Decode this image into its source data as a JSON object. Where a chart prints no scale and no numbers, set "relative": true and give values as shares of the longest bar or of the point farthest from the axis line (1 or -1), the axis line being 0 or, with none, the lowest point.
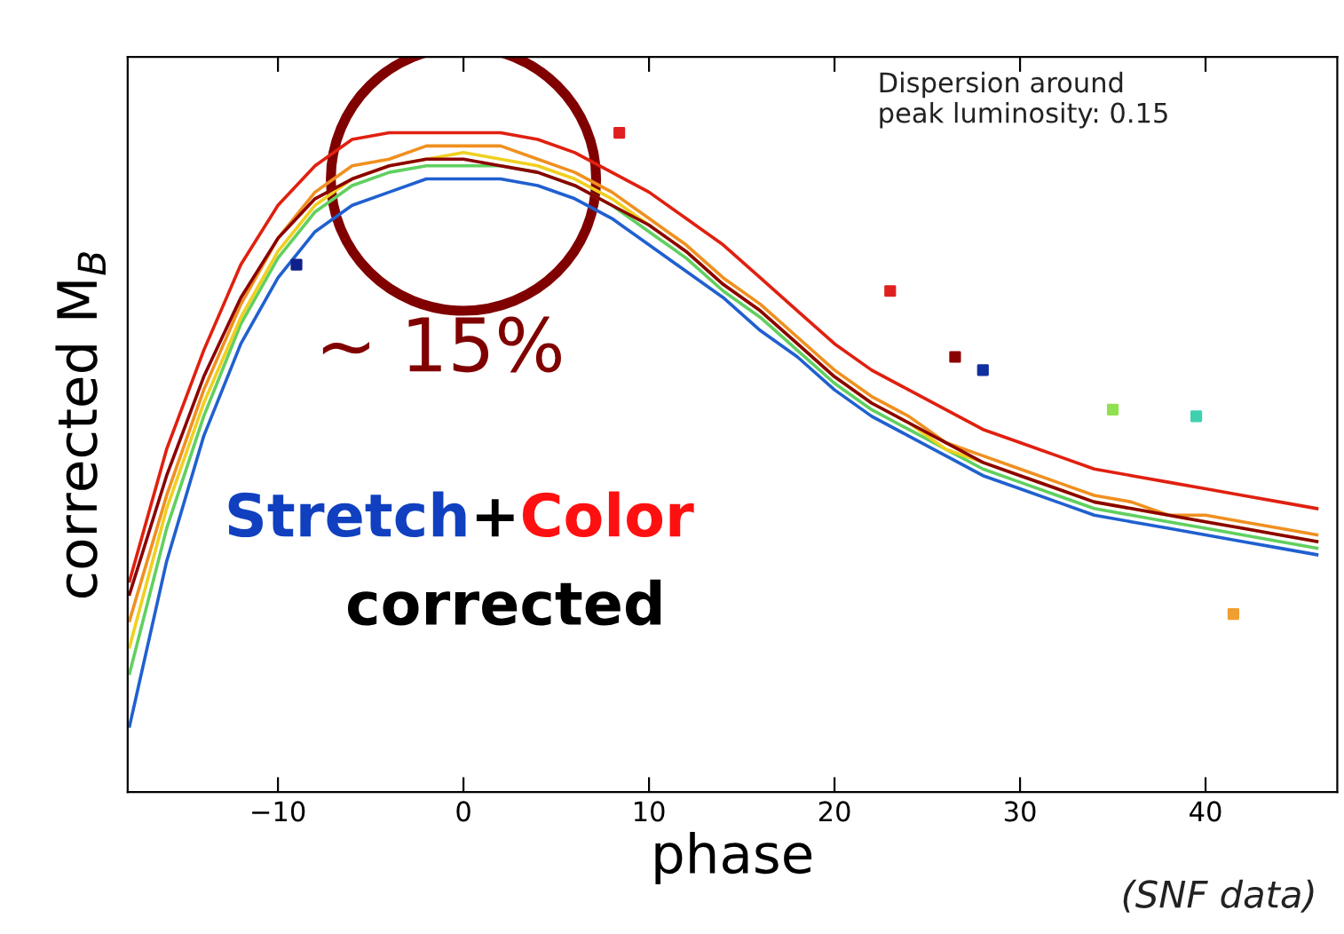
{
  "chart_data": {
    "type": "line",
    "xlabel": "phase",
    "ylabel": "corrected M$_{B}$",
    "relative": true,
    "x": [
      -18,
      -16,
      -14,
      -12,
      -10,
      -8,
      -6,
      -4,
      -2,
      0,
      2,
      4,
      6,
      8,
      10,
      12,
      14,
      16,
      18,
      20,
      22,
      24,
      26,
      28,
      30,
      32,
      34,
      36,
      38,
      40,
      42,
      44,
      46
    ],
    "xlim": [
      -18.1,
      47.1
    ],
    "xticks": [
      {
        "value": -10,
        "label": "−10"
      },
      0,
      10,
      20,
      30,
      40
    ],
    "grid": false,
    "legend": false,
    "marker": "none",
    "line_style": "solid",
    "series": [
      {
        "color": "#2060d0",
        "values": [
          0.1,
          0.35,
          0.54,
          0.68,
          0.78,
          0.85,
          0.89,
          0.91,
          0.93,
          0.93,
          0.93,
          0.92,
          0.9,
          0.87,
          0.83,
          0.79,
          0.75,
          0.7,
          0.66,
          0.61,
          0.57,
          0.54,
          0.51,
          0.48,
          0.46,
          0.44,
          0.42,
          0.41,
          0.4,
          0.39,
          0.38,
          0.37,
          0.36
        ]
      },
      {
        "color": "#60d060",
        "values": [
          0.18,
          0.4,
          0.57,
          0.71,
          0.81,
          0.88,
          0.92,
          0.94,
          0.95,
          0.95,
          0.95,
          0.94,
          0.92,
          0.89,
          0.85,
          0.81,
          0.76,
          0.72,
          0.67,
          0.62,
          0.58,
          0.55,
          0.52,
          0.49,
          0.47,
          0.45,
          0.43,
          0.42,
          0.41,
          0.4,
          0.39,
          0.38,
          0.37
        ]
      },
      {
        "color": "#f0d020",
        "values": [
          0.22,
          0.43,
          0.59,
          0.72,
          0.82,
          0.89,
          0.93,
          0.95,
          0.96,
          0.97,
          0.96,
          0.95,
          0.93,
          0.9,
          0.86,
          0.82,
          0.77,
          0.73,
          0.68,
          0.63,
          0.59,
          0.56,
          0.52,
          0.5,
          0.48,
          0.46,
          0.44,
          0.43,
          0.42,
          0.41,
          0.4,
          0.39,
          0.38
        ]
      },
      {
        "color": "#f09020",
        "values": [
          0.26,
          0.45,
          0.61,
          0.74,
          0.84,
          0.91,
          0.95,
          0.96,
          0.98,
          0.98,
          0.98,
          0.96,
          0.94,
          0.91,
          0.87,
          0.83,
          0.78,
          0.74,
          0.69,
          0.64,
          0.6,
          0.57,
          0.53,
          0.51,
          0.49,
          0.47,
          0.45,
          0.44,
          0.42,
          0.42,
          0.41,
          0.4,
          0.39
        ]
      },
      {
        "color": "#8b0000",
        "values": [
          0.3,
          0.48,
          0.63,
          0.75,
          0.84,
          0.9,
          0.93,
          0.95,
          0.96,
          0.96,
          0.95,
          0.94,
          0.92,
          0.89,
          0.86,
          0.82,
          0.77,
          0.73,
          0.68,
          0.63,
          0.59,
          0.56,
          0.53,
          0.5,
          0.48,
          0.46,
          0.44,
          0.43,
          0.42,
          0.41,
          0.4,
          0.39,
          0.38
        ]
      },
      {
        "color": "#e02010",
        "values": [
          0.32,
          0.52,
          0.67,
          0.8,
          0.89,
          0.95,
          0.99,
          1.0,
          1.0,
          1.0,
          1.0,
          0.99,
          0.97,
          0.94,
          0.91,
          0.87,
          0.83,
          0.78,
          0.73,
          0.68,
          0.64,
          0.61,
          0.58,
          0.55,
          0.53,
          0.51,
          0.49,
          0.48,
          0.47,
          0.46,
          0.45,
          0.44,
          0.43
        ]
      },
      {
        "type": "scatter",
        "marker": "square",
        "x": [
          -9,
          8.4,
          23,
          26.5,
          28,
          35,
          39.5,
          41.5
        ],
        "values": [
          0.8,
          1.0,
          0.76,
          0.66,
          0.64,
          0.58,
          0.57,
          0.27
        ],
        "colors": [
          "#10208a",
          "#e02020",
          "#e02020",
          "#8b0000",
          "#1030a0",
          "#90e050",
          "#40d0b0",
          "#f0a030"
        ]
      }
    ],
    "annotations": [
      "Dispersion around\npeak luminosity: 0.15",
      "~ 15%",
      "Stretch",
      "+",
      "Color",
      "corrected",
      "(SNF data)"
    ]
  }
}
